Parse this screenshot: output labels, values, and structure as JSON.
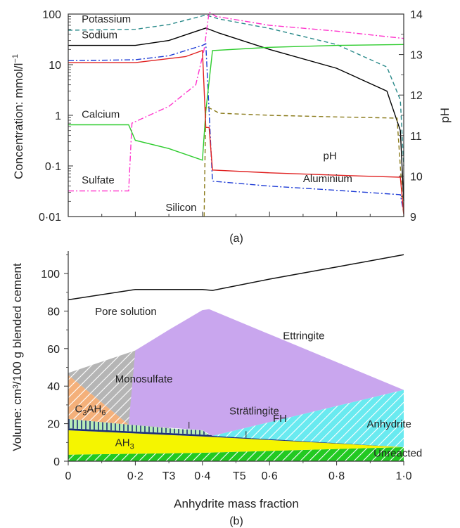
{
  "chart_data": [
    {
      "type": "line",
      "panel_label": "(a)",
      "ylabel": "Concentration: mmol/l",
      "ylabel_superscript": "−1",
      "y2label": "pH",
      "yscale": "log",
      "ylim": [
        0.01,
        100
      ],
      "y2lim": [
        9,
        14
      ],
      "xlim": [
        0,
        1
      ],
      "yticks": [
        "0·01",
        "0·1",
        "1",
        "10",
        "100"
      ],
      "y2ticks": [
        "9",
        "10",
        "11",
        "12",
        "13",
        "14"
      ],
      "series": [
        {
          "name": "Potassium",
          "axis": "left",
          "color": "#2a8a8a",
          "dash": "dashed",
          "points": [
            [
              0,
              48
            ],
            [
              0.2,
              50
            ],
            [
              0.3,
              62
            ],
            [
              0.41,
              96
            ],
            [
              0.45,
              80
            ],
            [
              0.6,
              52
            ],
            [
              0.8,
              25
            ],
            [
              0.95,
              9
            ],
            [
              0.99,
              2
            ],
            [
              1.0,
              0.1
            ]
          ]
        },
        {
          "name": "Sodium",
          "axis": "left",
          "color": "#000000",
          "dash": "solid",
          "points": [
            [
              0,
              24
            ],
            [
              0.2,
              24
            ],
            [
              0.3,
              30
            ],
            [
              0.41,
              53
            ],
            [
              0.45,
              42
            ],
            [
              0.6,
              20
            ],
            [
              0.8,
              8.5
            ],
            [
              0.95,
              3
            ],
            [
              0.99,
              0.5
            ],
            [
              1.0,
              0.02
            ]
          ]
        },
        {
          "name": "",
          "axis": "left",
          "color": "#ff33cc",
          "dash": "dashdot",
          "points": [
            [
              0,
              0.032
            ],
            [
              0.18,
              0.032
            ],
            [
              0.19,
              0.7
            ],
            [
              0.3,
              1.5
            ],
            [
              0.38,
              4
            ],
            [
              0.405,
              20
            ],
            [
              0.42,
              110
            ],
            [
              0.44,
              90
            ],
            [
              0.6,
              60
            ],
            [
              0.8,
              46
            ],
            [
              1.0,
              33
            ]
          ]
        },
        {
          "name": "",
          "axis": "left",
          "color": "#1f3dd6",
          "dash": "dashdot",
          "points": [
            [
              0,
              12
            ],
            [
              0.2,
              12.5
            ],
            [
              0.3,
              15
            ],
            [
              0.4,
              24
            ],
            [
              0.41,
              26
            ],
            [
              0.43,
              0.05
            ],
            [
              0.6,
              0.04
            ],
            [
              0.8,
              0.033
            ],
            [
              0.99,
              0.027
            ],
            [
              1.0,
              0.012
            ]
          ]
        },
        {
          "name": "Calcium",
          "axis": "left",
          "color": "#2ecc2e",
          "dash": "solid",
          "points": [
            [
              0,
              0.65
            ],
            [
              0.18,
              0.65
            ],
            [
              0.2,
              0.32
            ],
            [
              0.3,
              0.22
            ],
            [
              0.4,
              0.13
            ],
            [
              0.41,
              1.2
            ],
            [
              0.43,
              19
            ],
            [
              0.6,
              22
            ],
            [
              0.8,
              24
            ],
            [
              1.0,
              25
            ]
          ]
        },
        {
          "name": "Silicon",
          "axis": "left",
          "color": "#8a7a1a",
          "dash": "dashed",
          "points": [
            [
              0.405,
              0.01
            ],
            [
              0.41,
              1.5
            ],
            [
              0.43,
              1.3
            ],
            [
              0.45,
              1.1
            ],
            [
              0.6,
              1.0
            ],
            [
              0.8,
              0.93
            ],
            [
              0.98,
              0.88
            ],
            [
              1.0,
              0.01
            ]
          ]
        },
        {
          "name": "pH",
          "axis": "right",
          "color": "#e02020",
          "dash": "solid",
          "points": [
            [
              0,
              12.8
            ],
            [
              0.2,
              12.8
            ],
            [
              0.35,
              12.95
            ],
            [
              0.4,
              13.1
            ],
            [
              0.41,
              11.2
            ],
            [
              0.42,
              11.2
            ],
            [
              0.43,
              10.15
            ],
            [
              0.6,
              10.08
            ],
            [
              0.8,
              10.02
            ],
            [
              0.99,
              9.97
            ],
            [
              1.0,
              9.05
            ]
          ]
        }
      ],
      "labels": [
        {
          "text": "Potassium",
          "x": 0.04,
          "y": 68
        },
        {
          "text": "Sodium",
          "x": 0.04,
          "y": 33
        },
        {
          "text": "Calcium",
          "x": 0.04,
          "y": 0.9
        },
        {
          "text": "Sulfate",
          "x": 0.04,
          "y": 0.045
        },
        {
          "text": "Silicon",
          "x": 0.29,
          "y": 0.013
        },
        {
          "text": "pH",
          "x": 0.76,
          "y": 0.135
        },
        {
          "text": "Aluminium",
          "x": 0.7,
          "y": 0.048
        }
      ]
    },
    {
      "type": "area",
      "panel_label": "(b)",
      "xlabel": "Anhydrite mass fraction",
      "ylabel": "Volume: cm³/100 g blended cement",
      "xlim": [
        0,
        1
      ],
      "ylim": [
        0,
        112
      ],
      "xticks": [
        {
          "value": 0,
          "label": "0"
        },
        {
          "value": 0.2,
          "label": "0·2"
        },
        {
          "value": 0.4,
          "label": "0·4"
        },
        {
          "value": 0.6,
          "label": "0·6"
        },
        {
          "value": 0.8,
          "label": "0·8"
        },
        {
          "value": 1.0,
          "label": "1·0"
        }
      ],
      "yticks": [
        0,
        20,
        40,
        60,
        80,
        100
      ],
      "total_volume": [
        [
          0,
          86
        ],
        [
          0.2,
          91.5
        ],
        [
          0.4,
          91.5
        ],
        [
          0.43,
          91
        ],
        [
          0.6,
          97
        ],
        [
          0.8,
          103.5
        ],
        [
          1.0,
          110
        ]
      ],
      "regions": [
        {
          "name": "Unreacted",
          "color": "#22c922",
          "pattern": "hatch-white",
          "points": [
            [
              0,
              0
            ],
            [
              1,
              0
            ],
            [
              1,
              7.5
            ],
            [
              0.8,
              6.5
            ],
            [
              0.4,
              4.5
            ],
            [
              0,
              3.5
            ]
          ]
        },
        {
          "name": "AH₃",
          "color": "#f5f500",
          "pattern": "none",
          "points": [
            [
              0,
              3.5
            ],
            [
              0.4,
              4.5
            ],
            [
              0.8,
              6.5
            ],
            [
              1,
              7.5
            ],
            [
              0.42,
              13
            ],
            [
              0,
              16.5
            ]
          ]
        },
        {
          "name": "FH",
          "color": "#1c2f7a",
          "pattern": "none",
          "points": [
            [
              0,
              16.5
            ],
            [
              0.42,
              13
            ],
            [
              1,
              7.5
            ],
            [
              0.42,
              14
            ],
            [
              0,
              17.5
            ]
          ]
        },
        {
          "name": "Strätlingite",
          "color": "#b8ecb8",
          "pattern": "vertical-dark",
          "points": [
            [
              0,
              17.5
            ],
            [
              0.42,
              14
            ],
            [
              0.4,
              16.5
            ],
            [
              0.3,
              17.5
            ],
            [
              0.18,
              19.5
            ],
            [
              0,
              22.5
            ]
          ]
        },
        {
          "name": "C₃AH₆",
          "color": "#f4b07a",
          "pattern": "hatch-white",
          "points": [
            [
              0,
              22.5
            ],
            [
              0.18,
              19.5
            ],
            [
              0,
              46
            ]
          ]
        },
        {
          "name": "Monosulfate",
          "color": "#b5b5b5",
          "pattern": "hatch-white",
          "points": [
            [
              0,
              46
            ],
            [
              0.18,
              19.5
            ],
            [
              0.3,
              17.5
            ],
            [
              0.4,
              80.5
            ],
            [
              0.2,
              59
            ],
            [
              0,
              47
            ]
          ]
        },
        {
          "name": "Ettringite",
          "color": "#c9a6ee",
          "pattern": "none",
          "points": [
            [
              0.18,
              19.5
            ],
            [
              0.4,
              16.5
            ],
            [
              0.43,
              13.5
            ],
            [
              1,
              38
            ],
            [
              0.42,
              81
            ],
            [
              0.4,
              80.5
            ],
            [
              0.3,
              70
            ],
            [
              0.2,
              59
            ]
          ]
        },
        {
          "name": "Anhydrite",
          "color": "#69eaf0",
          "pattern": "hatch-white",
          "points": [
            [
              0.43,
              13.5
            ],
            [
              1,
              7.5
            ],
            [
              1,
              38
            ]
          ]
        }
      ],
      "labels": [
        {
          "text": "Pore solution",
          "x": 0.08,
          "y": 78
        },
        {
          "text": "Ettringite",
          "x": 0.64,
          "y": 65
        },
        {
          "text": "Monosulfate",
          "x": 0.14,
          "y": 42
        },
        {
          "text": "C",
          "sub": "3",
          "text2": "AH",
          "sub2": "6",
          "x": 0.02,
          "y": 26
        },
        {
          "text": "Strätlingite",
          "x": 0.48,
          "y": 25
        },
        {
          "text": "FH",
          "x": 0.61,
          "y": 21
        },
        {
          "text": "Anhydrite",
          "x": 0.89,
          "y": 18
        },
        {
          "text": "AH",
          "sub": "3",
          "x": 0.14,
          "y": 8
        },
        {
          "text": "Unreacted",
          "x": 0.91,
          "y": 2.5
        }
      ],
      "markers": [
        {
          "text": "T3",
          "x": 0.3
        },
        {
          "text": "T5",
          "x": 0.51
        }
      ]
    }
  ]
}
